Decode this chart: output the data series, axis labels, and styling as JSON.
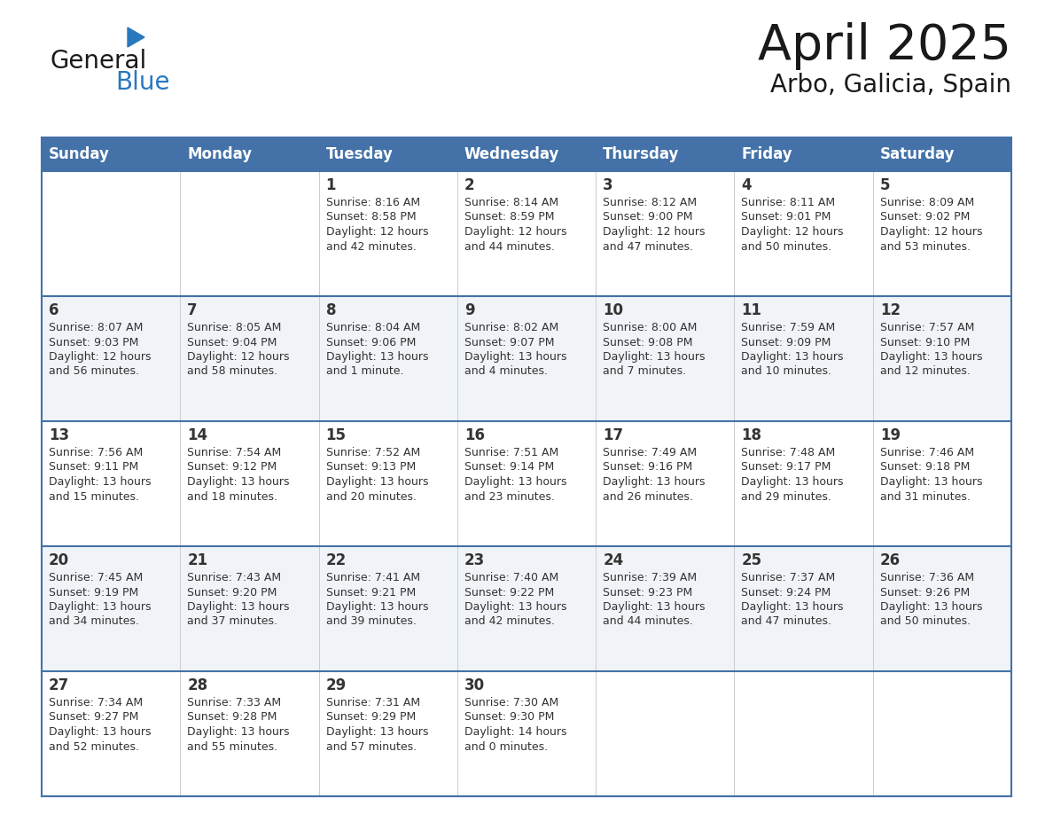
{
  "title": "April 2025",
  "subtitle": "Arbo, Galicia, Spain",
  "days_of_week": [
    "Sunday",
    "Monday",
    "Tuesday",
    "Wednesday",
    "Thursday",
    "Friday",
    "Saturday"
  ],
  "header_bg": "#4472a8",
  "header_text": "#ffffff",
  "row_bg_odd": "#f0f4f8",
  "row_bg_even": "#ffffff",
  "border_color": "#4472a8",
  "cell_border_color": "#cccccc",
  "text_color": "#333333",
  "calendar_data": [
    [
      {
        "day": "",
        "info": ""
      },
      {
        "day": "",
        "info": ""
      },
      {
        "day": "1",
        "info": "Sunrise: 8:16 AM\nSunset: 8:58 PM\nDaylight: 12 hours\nand 42 minutes."
      },
      {
        "day": "2",
        "info": "Sunrise: 8:14 AM\nSunset: 8:59 PM\nDaylight: 12 hours\nand 44 minutes."
      },
      {
        "day": "3",
        "info": "Sunrise: 8:12 AM\nSunset: 9:00 PM\nDaylight: 12 hours\nand 47 minutes."
      },
      {
        "day": "4",
        "info": "Sunrise: 8:11 AM\nSunset: 9:01 PM\nDaylight: 12 hours\nand 50 minutes."
      },
      {
        "day": "5",
        "info": "Sunrise: 8:09 AM\nSunset: 9:02 PM\nDaylight: 12 hours\nand 53 minutes."
      }
    ],
    [
      {
        "day": "6",
        "info": "Sunrise: 8:07 AM\nSunset: 9:03 PM\nDaylight: 12 hours\nand 56 minutes."
      },
      {
        "day": "7",
        "info": "Sunrise: 8:05 AM\nSunset: 9:04 PM\nDaylight: 12 hours\nand 58 minutes."
      },
      {
        "day": "8",
        "info": "Sunrise: 8:04 AM\nSunset: 9:06 PM\nDaylight: 13 hours\nand 1 minute."
      },
      {
        "day": "9",
        "info": "Sunrise: 8:02 AM\nSunset: 9:07 PM\nDaylight: 13 hours\nand 4 minutes."
      },
      {
        "day": "10",
        "info": "Sunrise: 8:00 AM\nSunset: 9:08 PM\nDaylight: 13 hours\nand 7 minutes."
      },
      {
        "day": "11",
        "info": "Sunrise: 7:59 AM\nSunset: 9:09 PM\nDaylight: 13 hours\nand 10 minutes."
      },
      {
        "day": "12",
        "info": "Sunrise: 7:57 AM\nSunset: 9:10 PM\nDaylight: 13 hours\nand 12 minutes."
      }
    ],
    [
      {
        "day": "13",
        "info": "Sunrise: 7:56 AM\nSunset: 9:11 PM\nDaylight: 13 hours\nand 15 minutes."
      },
      {
        "day": "14",
        "info": "Sunrise: 7:54 AM\nSunset: 9:12 PM\nDaylight: 13 hours\nand 18 minutes."
      },
      {
        "day": "15",
        "info": "Sunrise: 7:52 AM\nSunset: 9:13 PM\nDaylight: 13 hours\nand 20 minutes."
      },
      {
        "day": "16",
        "info": "Sunrise: 7:51 AM\nSunset: 9:14 PM\nDaylight: 13 hours\nand 23 minutes."
      },
      {
        "day": "17",
        "info": "Sunrise: 7:49 AM\nSunset: 9:16 PM\nDaylight: 13 hours\nand 26 minutes."
      },
      {
        "day": "18",
        "info": "Sunrise: 7:48 AM\nSunset: 9:17 PM\nDaylight: 13 hours\nand 29 minutes."
      },
      {
        "day": "19",
        "info": "Sunrise: 7:46 AM\nSunset: 9:18 PM\nDaylight: 13 hours\nand 31 minutes."
      }
    ],
    [
      {
        "day": "20",
        "info": "Sunrise: 7:45 AM\nSunset: 9:19 PM\nDaylight: 13 hours\nand 34 minutes."
      },
      {
        "day": "21",
        "info": "Sunrise: 7:43 AM\nSunset: 9:20 PM\nDaylight: 13 hours\nand 37 minutes."
      },
      {
        "day": "22",
        "info": "Sunrise: 7:41 AM\nSunset: 9:21 PM\nDaylight: 13 hours\nand 39 minutes."
      },
      {
        "day": "23",
        "info": "Sunrise: 7:40 AM\nSunset: 9:22 PM\nDaylight: 13 hours\nand 42 minutes."
      },
      {
        "day": "24",
        "info": "Sunrise: 7:39 AM\nSunset: 9:23 PM\nDaylight: 13 hours\nand 44 minutes."
      },
      {
        "day": "25",
        "info": "Sunrise: 7:37 AM\nSunset: 9:24 PM\nDaylight: 13 hours\nand 47 minutes."
      },
      {
        "day": "26",
        "info": "Sunrise: 7:36 AM\nSunset: 9:26 PM\nDaylight: 13 hours\nand 50 minutes."
      }
    ],
    [
      {
        "day": "27",
        "info": "Sunrise: 7:34 AM\nSunset: 9:27 PM\nDaylight: 13 hours\nand 52 minutes."
      },
      {
        "day": "28",
        "info": "Sunrise: 7:33 AM\nSunset: 9:28 PM\nDaylight: 13 hours\nand 55 minutes."
      },
      {
        "day": "29",
        "info": "Sunrise: 7:31 AM\nSunset: 9:29 PM\nDaylight: 13 hours\nand 57 minutes."
      },
      {
        "day": "30",
        "info": "Sunrise: 7:30 AM\nSunset: 9:30 PM\nDaylight: 14 hours\nand 0 minutes."
      },
      {
        "day": "",
        "info": ""
      },
      {
        "day": "",
        "info": ""
      },
      {
        "day": "",
        "info": ""
      }
    ]
  ],
  "logo_text_general": "General",
  "logo_text_blue": "Blue",
  "logo_color_general": "#1a1a1a",
  "logo_color_blue": "#2878be",
  "logo_triangle_color": "#2878be",
  "title_fontsize": 40,
  "subtitle_fontsize": 20,
  "header_fontsize": 12,
  "day_num_fontsize": 12,
  "info_fontsize": 9
}
